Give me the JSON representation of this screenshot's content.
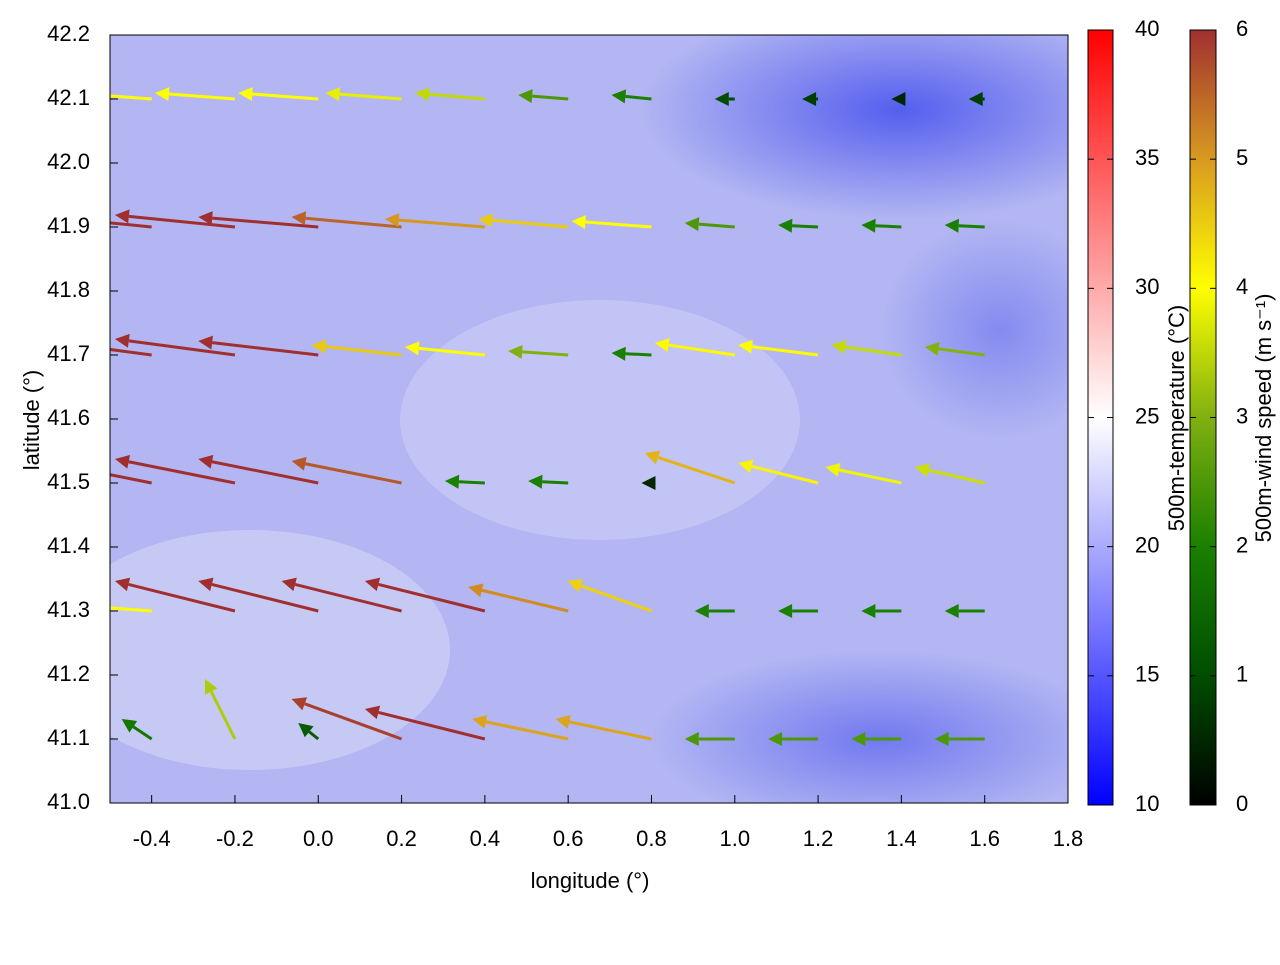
{
  "chart_data": {
    "type": "quiver",
    "xlabel": "longitude (°)",
    "ylabel": "latitude (°)",
    "xlim": [
      -0.5,
      1.8
    ],
    "ylim": [
      41.0,
      42.2
    ],
    "xticks": [
      -0.4,
      -0.2,
      {
        "value": 0,
        "label": "0.0"
      },
      0.2,
      0.4,
      0.6,
      0.8,
      {
        "value": 1,
        "label": "1.0"
      },
      1.2,
      1.4,
      1.6,
      1.8
    ],
    "yticks": [
      {
        "value": 41,
        "label": "41.0"
      },
      41.1,
      41.2,
      41.3,
      41.4,
      41.5,
      41.6,
      41.7,
      41.8,
      41.9,
      {
        "value": 42,
        "label": "42.0"
      },
      42.1,
      42.2
    ],
    "temperature_colorbar": {
      "label": "500m-temperature (°C)",
      "lim": [
        10,
        40
      ],
      "ticks": [
        10,
        15,
        20,
        25,
        30,
        35,
        40
      ],
      "colors": [
        "#0000ff",
        "#ffffff",
        "#ff0000"
      ]
    },
    "wind_colorbar": {
      "label": "500m-wind speed (m s⁻¹)",
      "lim": [
        0,
        6
      ],
      "ticks": [
        0,
        1,
        2,
        3,
        4,
        5,
        6
      ],
      "colors": [
        "#000000",
        "#004d00",
        "#1a8000",
        "#80b010",
        "#ffff00",
        "#d89a20",
        "#a03030"
      ]
    },
    "vectors": {
      "x": [
        -0.4,
        -0.2,
        0,
        0.2,
        0.4,
        0.6,
        0.8,
        1.0,
        1.2,
        1.4,
        1.6,
        -0.4,
        -0.2,
        0,
        0.2,
        0.4,
        0.6,
        0.8,
        1.0,
        1.2,
        1.4,
        1.6,
        -0.4,
        -0.2,
        0,
        0.2,
        0.4,
        0.6,
        0.8,
        1.0,
        1.2,
        1.4,
        1.6,
        -0.4,
        -0.2,
        0,
        0.2,
        0.4,
        0.6,
        0.8,
        1.0,
        1.2,
        1.4,
        1.6,
        -0.4,
        -0.2,
        0,
        0.2,
        0.4,
        0.6,
        0.8,
        1.0,
        1.2,
        1.4,
        1.6,
        -0.4,
        -0.2,
        0,
        0.2,
        0.4,
        0.6,
        0.8,
        1.0,
        1.2,
        1.4,
        1.6
      ],
      "y": [
        42.1,
        42.1,
        42.1,
        42.1,
        42.1,
        42.1,
        42.1,
        42.1,
        42.1,
        42.1,
        42.1,
        41.9,
        41.9,
        41.9,
        41.9,
        41.9,
        41.9,
        41.9,
        41.9,
        41.9,
        41.9,
        41.9,
        41.7,
        41.7,
        41.7,
        41.7,
        41.7,
        41.7,
        41.7,
        41.7,
        41.7,
        41.7,
        41.7,
        41.5,
        41.5,
        41.5,
        41.5,
        41.5,
        41.5,
        41.5,
        41.5,
        41.5,
        41.5,
        41.5,
        41.3,
        41.3,
        41.3,
        41.3,
        41.3,
        41.3,
        41.3,
        41.3,
        41.3,
        41.3,
        41.3,
        41.1,
        41.1,
        41.1,
        41.1,
        41.1,
        41.1,
        41.1,
        41.1,
        41.1,
        41.1,
        41.1
      ],
      "u": [
        -4,
        -4,
        -4,
        -3.8,
        -3.5,
        -2.5,
        -2,
        -1,
        -0.8,
        -0.5,
        -0.8,
        -6,
        -6,
        -6,
        -5.5,
        -5,
        -4.5,
        -4,
        -2.5,
        -2,
        -2,
        -2,
        -6,
        -6,
        -6,
        -4.5,
        -4,
        -3,
        -2,
        -4,
        -4,
        -3.5,
        -3,
        -6,
        -6,
        -6,
        -5.5,
        -2,
        -2,
        -0.5,
        -4.5,
        -4,
        -3.8,
        -3.5,
        -4,
        -6,
        -6,
        -6,
        -6,
        -5,
        -4.2,
        -2,
        -2,
        -2,
        -2,
        -1.5,
        -1.5,
        -1,
        -5.5,
        -6,
        -4.8,
        -4.8,
        -2.5,
        -2.5,
        -2.5,
        -2.5
      ],
      "v": [
        0.3,
        0.3,
        0.3,
        0.3,
        0.3,
        0.2,
        0.2,
        0,
        0,
        0,
        0,
        0.6,
        0.6,
        0.5,
        0.5,
        0.4,
        0.4,
        0.3,
        0.2,
        0.1,
        0.1,
        0.1,
        0.8,
        0.8,
        0.7,
        0.5,
        0.4,
        0.2,
        0.1,
        0.6,
        0.5,
        0.5,
        0.4,
        1.2,
        1.2,
        1.2,
        1.1,
        0.1,
        0.1,
        0,
        1.5,
        1,
        0.8,
        0.8,
        0.3,
        1.5,
        1.5,
        1.5,
        1.5,
        1.2,
        1.5,
        0,
        0,
        0,
        0,
        1,
        3,
        0.8,
        2,
        1.5,
        1,
        1,
        0,
        0,
        0,
        0
      ]
    }
  }
}
